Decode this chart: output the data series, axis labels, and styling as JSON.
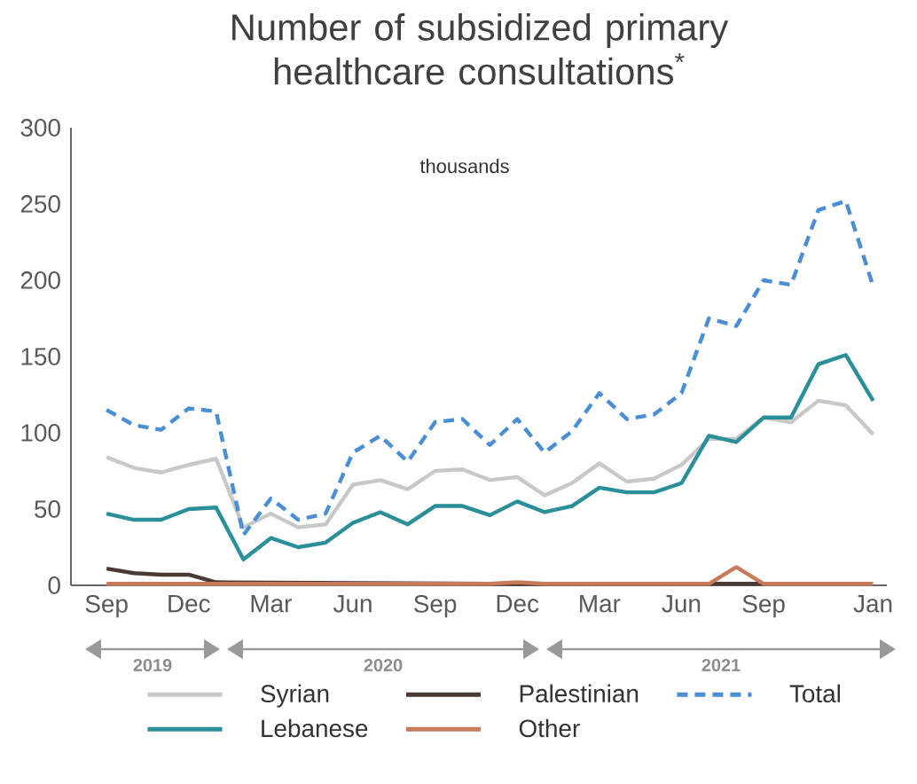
{
  "chart_data": {
    "type": "line",
    "title": "Number of subsidized primary healthcare consultations$^{*}$",
    "subtitle": "thousands",
    "categories": [
      "Sep",
      null,
      null,
      "Dec",
      null,
      null,
      "Mar",
      null,
      null,
      "Jun",
      null,
      null,
      "Sep",
      null,
      null,
      "Dec",
      null,
      null,
      "Mar",
      null,
      null,
      "Jun",
      null,
      null,
      "Sep",
      null,
      null,
      null,
      "Jan"
    ],
    "series": [
      {
        "name": "Syrian",
        "color": "#c8c8c8",
        "values": [
          84,
          77,
          74,
          79,
          83,
          38,
          47,
          38,
          40,
          66,
          69,
          63,
          75,
          76,
          69,
          71,
          59,
          67,
          80,
          68,
          70,
          79,
          96,
          96,
          110,
          107,
          121,
          118,
          99
        ]
      },
      {
        "name": "Palestinian",
        "color": "#4a3a33",
        "values": [
          11,
          8,
          7,
          7,
          2,
          null,
          null,
          null,
          null,
          null,
          null,
          null,
          null,
          null,
          1,
          1,
          1,
          null,
          null,
          null,
          null,
          null,
          1,
          1,
          1,
          null,
          null,
          null,
          null
        ]
      },
      {
        "name": "Total",
        "color": "#4a8fd6",
        "line_style": "dashed",
        "values": [
          115,
          105,
          102,
          116,
          114,
          33,
          57,
          43,
          47,
          87,
          98,
          81,
          107,
          109,
          92,
          109,
          87,
          101,
          126,
          109,
          112,
          126,
          175,
          170,
          200,
          197,
          246,
          252,
          196
        ]
      },
      {
        "name": "Lebanese",
        "color": "#2a8f99",
        "values": [
          47,
          43,
          43,
          50,
          51,
          17,
          31,
          25,
          28,
          41,
          48,
          40,
          52,
          52,
          46,
          55,
          48,
          52,
          64,
          61,
          61,
          67,
          98,
          94,
          110,
          110,
          145,
          151,
          121
        ]
      },
      {
        "name": "Other",
        "color": "#c87a5a",
        "values": [
          1,
          1,
          1,
          1,
          1,
          1,
          1,
          1,
          1,
          1,
          1,
          1,
          1,
          1,
          1,
          2,
          1,
          1,
          1,
          1,
          1,
          1,
          1,
          12,
          1,
          1,
          1,
          1,
          1
        ]
      }
    ],
    "ylim": [
      0,
      300
    ],
    "yticks": [
      0,
      50,
      100,
      150,
      200,
      250,
      300
    ],
    "annotations": [
      "2019",
      "2020",
      "2021"
    ],
    "line_style": "solid",
    "marker": "none",
    "grid": false,
    "legend": "bottom"
  }
}
